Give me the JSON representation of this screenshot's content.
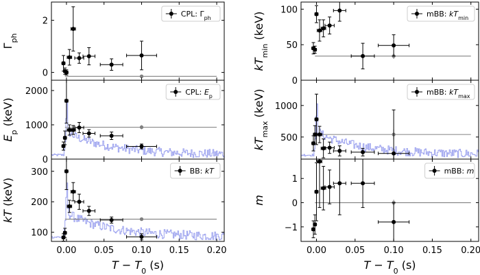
{
  "figure": {
    "x_label": "T − T₀ (s)",
    "x_label_parts": [
      "T",
      " − ",
      "T",
      "0",
      " (s)"
    ],
    "xlim": [
      -0.02,
      0.21
    ],
    "xticks": [
      0.0,
      0.05,
      0.1,
      0.15,
      0.2
    ],
    "xtick_labels": [
      "0.00",
      "0.05",
      "0.10",
      "0.15",
      "0.20"
    ]
  },
  "colors": {
    "points": "#000000",
    "reference": "#808080",
    "lightcurve": "#9aa0ee",
    "frame": "#000000"
  },
  "chart_data": [
    {
      "id": "gamma",
      "type": "scatter",
      "ylabel": "Γph",
      "ylabel_parts": [
        [
          "Γ",
          ""
        ],
        [
          "ph",
          "sub"
        ]
      ],
      "legend": [
        [
          "CPL: Γ",
          ""
        ],
        [
          "ph",
          "sub"
        ]
      ],
      "legend_text": "CPL: Γph",
      "ylim": [
        -0.3,
        2.7
      ],
      "yticks": [
        0,
        2
      ],
      "ytick_labels": [
        "0",
        "2"
      ],
      "has_lightcurve": false,
      "points": [
        {
          "x": -0.004,
          "xerr": 0.002,
          "y": 0.35,
          "yerr": 0.3
        },
        {
          "x": -0.002,
          "xerr": 0.002,
          "y": 0.05,
          "yerr": 0.12
        },
        {
          "x": 0.0,
          "xerr": 0.002,
          "y": 0.0,
          "yerr": 0.1
        },
        {
          "x": 0.004,
          "xerr": 0.003,
          "y": 0.58,
          "yerr": 0.3
        },
        {
          "x": 0.009,
          "xerr": 0.003,
          "y": 1.67,
          "yerr": 0.85
        },
        {
          "x": 0.017,
          "xerr": 0.006,
          "y": 0.55,
          "yerr": 0.2
        },
        {
          "x": 0.03,
          "xerr": 0.008,
          "y": 0.62,
          "yerr": 0.33
        },
        {
          "x": 0.06,
          "xerr": 0.015,
          "y": 0.3,
          "yerr": 0.22
        },
        {
          "x": 0.1,
          "xerr": 0.02,
          "y": 0.65,
          "yerr": 0.55
        }
      ],
      "reference": {
        "x": 0.1,
        "y": -0.15,
        "yerr": 0.06,
        "xmin": -0.002,
        "xmax": 0.2
      }
    },
    {
      "id": "ep",
      "type": "scatter",
      "ylabel": "Ep (keV)",
      "ylabel_parts": [
        [
          "E",
          "it"
        ],
        [
          "p",
          "sub"
        ],
        [
          " (keV)",
          ""
        ]
      ],
      "legend": [
        [
          "CPL: ",
          ""
        ],
        [
          "E",
          "it"
        ],
        [
          "p",
          "sub"
        ]
      ],
      "legend_text": "CPL: Ep",
      "ylim": [
        0,
        2300
      ],
      "yticks": [
        0,
        1000,
        2000
      ],
      "ytick_labels": [
        "0",
        "1000",
        "2000"
      ],
      "has_lightcurve": true,
      "points": [
        {
          "x": -0.004,
          "xerr": 0.002,
          "y": 380,
          "yerr": 120
        },
        {
          "x": -0.002,
          "xerr": 0.002,
          "y": 620,
          "yerr": 200
        },
        {
          "x": 0.0,
          "xerr": 0.002,
          "y": 1700,
          "yerr": 650
        },
        {
          "x": 0.004,
          "xerr": 0.003,
          "y": 850,
          "yerr": 150
        },
        {
          "x": 0.009,
          "xerr": 0.003,
          "y": 850,
          "yerr": 130
        },
        {
          "x": 0.017,
          "xerr": 0.006,
          "y": 920,
          "yerr": 150
        },
        {
          "x": 0.03,
          "xerr": 0.008,
          "y": 750,
          "yerr": 110
        },
        {
          "x": 0.06,
          "xerr": 0.015,
          "y": 680,
          "yerr": 110
        },
        {
          "x": 0.1,
          "xerr": 0.02,
          "y": 370,
          "yerr": 70
        }
      ],
      "reference": {
        "x": 0.1,
        "y": 930,
        "yerr": 60,
        "xmin": -0.002,
        "xmax": 0.2
      }
    },
    {
      "id": "kt",
      "type": "scatter",
      "ylabel": "kT (keV)",
      "ylabel_parts": [
        [
          "kT",
          "it"
        ],
        [
          " (keV)",
          ""
        ]
      ],
      "legend": [
        [
          "BB: ",
          ""
        ],
        [
          "kT",
          "it"
        ]
      ],
      "legend_text": "BB: kT",
      "ylim": [
        70,
        340
      ],
      "yticks": [
        100,
        200,
        300
      ],
      "ytick_labels": [
        "100",
        "200",
        "300"
      ],
      "has_lightcurve": true,
      "points": [
        {
          "x": -0.004,
          "xerr": 0.002,
          "y": 83,
          "yerr": 12
        },
        {
          "x": -0.002,
          "xerr": 0.002,
          "y": 98,
          "yerr": 15
        },
        {
          "x": 0.0,
          "xerr": 0.002,
          "y": 300,
          "yerr": 60
        },
        {
          "x": 0.004,
          "xerr": 0.003,
          "y": 185,
          "yerr": 20
        },
        {
          "x": 0.009,
          "xerr": 0.003,
          "y": 233,
          "yerr": 30
        },
        {
          "x": 0.017,
          "xerr": 0.006,
          "y": 200,
          "yerr": 25
        },
        {
          "x": 0.03,
          "xerr": 0.008,
          "y": 170,
          "yerr": 15
        },
        {
          "x": 0.06,
          "xerr": 0.015,
          "y": 140,
          "yerr": 10
        },
        {
          "x": 0.1,
          "xerr": 0.02,
          "y": 85,
          "yerr": 10
        }
      ],
      "reference": {
        "x": 0.1,
        "y": 143,
        "yerr": 5,
        "xmin": -0.002,
        "xmax": 0.2
      }
    },
    {
      "id": "ktmin",
      "type": "scatter",
      "ylabel": "kTmin (keV)",
      "ylabel_parts": [
        [
          "kT",
          "it"
        ],
        [
          "min",
          "sub"
        ],
        [
          " (keV)",
          ""
        ]
      ],
      "legend": [
        [
          "mBB: ",
          ""
        ],
        [
          "kT",
          "it"
        ],
        [
          "min",
          "sub"
        ]
      ],
      "legend_text": "mBB: kTmin",
      "ylim": [
        0,
        110
      ],
      "yticks": [
        0,
        50,
        100
      ],
      "ytick_labels": [
        "0",
        "50",
        "100"
      ],
      "has_lightcurve": false,
      "points": [
        {
          "x": -0.004,
          "xerr": 0.002,
          "y": 45,
          "yerr": 8
        },
        {
          "x": -0.002,
          "xerr": 0.002,
          "y": 43,
          "yerr": 5
        },
        {
          "x": 0.0,
          "xerr": 0.002,
          "y": 93,
          "yerr": 12
        },
        {
          "x": 0.004,
          "xerr": 0.003,
          "y": 70,
          "yerr": 15
        },
        {
          "x": 0.009,
          "xerr": 0.003,
          "y": 73,
          "yerr": 12
        },
        {
          "x": 0.017,
          "xerr": 0.006,
          "y": 77,
          "yerr": 12
        },
        {
          "x": 0.03,
          "xerr": 0.008,
          "y": 98,
          "yerr": 15
        },
        {
          "x": 0.06,
          "xerr": 0.015,
          "y": 34,
          "yerr": 18
        },
        {
          "x": 0.1,
          "xerr": 0.02,
          "y": 49,
          "yerr": 15
        }
      ],
      "reference": {
        "x": 0.1,
        "y": 34,
        "yerr": 4,
        "xmin": -0.002,
        "xmax": 0.2
      }
    },
    {
      "id": "ktmax",
      "type": "scatter",
      "ylabel": "kTmax (keV)",
      "ylabel_parts": [
        [
          "kT",
          "it"
        ],
        [
          "max",
          "sub"
        ],
        [
          " (keV)",
          ""
        ]
      ],
      "legend": [
        [
          "mBB: ",
          ""
        ],
        [
          "kT",
          "it"
        ],
        [
          "max",
          "sub"
        ]
      ],
      "legend_text": "mBB: kTmax",
      "ylim": [
        150,
        1400
      ],
      "yticks": [
        500,
        1000
      ],
      "ytick_labels": [
        "500",
        "1000"
      ],
      "has_lightcurve": true,
      "points": [
        {
          "x": -0.004,
          "xerr": 0.002,
          "y": 400,
          "yerr": 120
        },
        {
          "x": -0.002,
          "xerr": 0.002,
          "y": 540,
          "yerr": 140
        },
        {
          "x": 0.0,
          "xerr": 0.002,
          "y": 780,
          "yerr": 400
        },
        {
          "x": 0.004,
          "xerr": 0.003,
          "y": 540,
          "yerr": 130
        },
        {
          "x": 0.009,
          "xerr": 0.003,
          "y": 320,
          "yerr": 150
        },
        {
          "x": 0.017,
          "xerr": 0.006,
          "y": 330,
          "yerr": 90
        },
        {
          "x": 0.03,
          "xerr": 0.008,
          "y": 280,
          "yerr": 80
        },
        {
          "x": 0.06,
          "xerr": 0.015,
          "y": 260,
          "yerr": 60
        },
        {
          "x": 0.1,
          "xerr": 0.02,
          "y": 240,
          "yerr": 690
        }
      ],
      "reference": {
        "x": 0.1,
        "y": 540,
        "yerr": 80,
        "xmin": -0.002,
        "xmax": 0.2
      }
    },
    {
      "id": "m",
      "type": "scatter",
      "ylabel": "m",
      "ylabel_parts": [
        [
          "m",
          "it"
        ]
      ],
      "legend": [
        [
          "mBB: ",
          ""
        ],
        [
          "m",
          "it"
        ]
      ],
      "legend_text": "mBB: m",
      "ylim": [
        -1.6,
        1.8
      ],
      "yticks": [
        -1,
        0,
        1
      ],
      "ytick_labels": [
        "−1",
        "0",
        "1"
      ],
      "has_lightcurve": false,
      "points": [
        {
          "x": -0.004,
          "xerr": 0.002,
          "y": -1.1,
          "yerr": 0.35
        },
        {
          "x": -0.002,
          "xerr": 0.002,
          "y": -0.9,
          "yerr": 0.4
        },
        {
          "x": 0.0,
          "xerr": 0.002,
          "y": 0.45,
          "yerr": 1.2
        },
        {
          "x": 0.004,
          "xerr": 0.003,
          "y": 1.7,
          "yerr": 1.9
        },
        {
          "x": 0.009,
          "xerr": 0.003,
          "y": 0.6,
          "yerr": 0.9
        },
        {
          "x": 0.017,
          "xerr": 0.006,
          "y": 0.65,
          "yerr": 0.7
        },
        {
          "x": 0.03,
          "xerr": 0.008,
          "y": 0.8,
          "yerr": 1.3
        },
        {
          "x": 0.06,
          "xerr": 0.015,
          "y": 0.8,
          "yerr": 1.0
        },
        {
          "x": 0.1,
          "xerr": 0.02,
          "y": -0.8,
          "yerr": 0.8
        }
      ],
      "reference": {
        "x": 0.1,
        "y": 0.0,
        "yerr": 0.12,
        "xmin": -0.002,
        "xmax": 0.2
      }
    }
  ]
}
